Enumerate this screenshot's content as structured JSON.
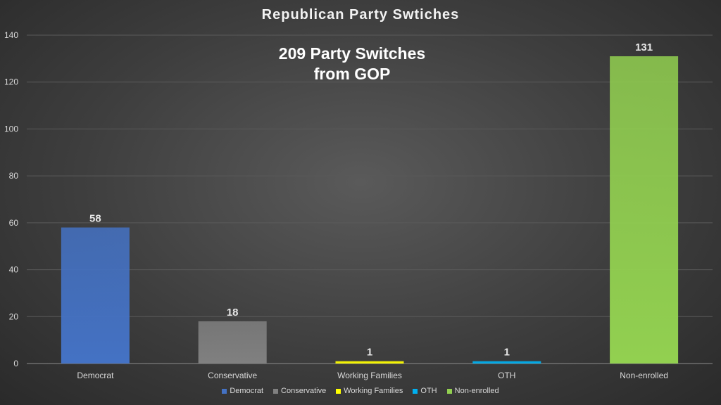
{
  "chart_data": {
    "type": "bar",
    "title": "Republican Party Swtiches",
    "annotation": [
      "209 Party Switches",
      "from GOP"
    ],
    "categories": [
      "Democrat",
      "Conservative",
      "Working Families",
      "OTH",
      "Non-enrolled"
    ],
    "values": [
      58,
      18,
      1,
      1,
      131
    ],
    "colors": [
      "#4472c4",
      "#808080",
      "#ffff00",
      "#00b0f0",
      "#92d050"
    ],
    "ylim": [
      0,
      140
    ],
    "yticks": [
      0,
      20,
      40,
      60,
      80,
      100,
      120,
      140
    ],
    "grid": true,
    "legend_position": "bottom",
    "xlabel": "",
    "ylabel": ""
  }
}
